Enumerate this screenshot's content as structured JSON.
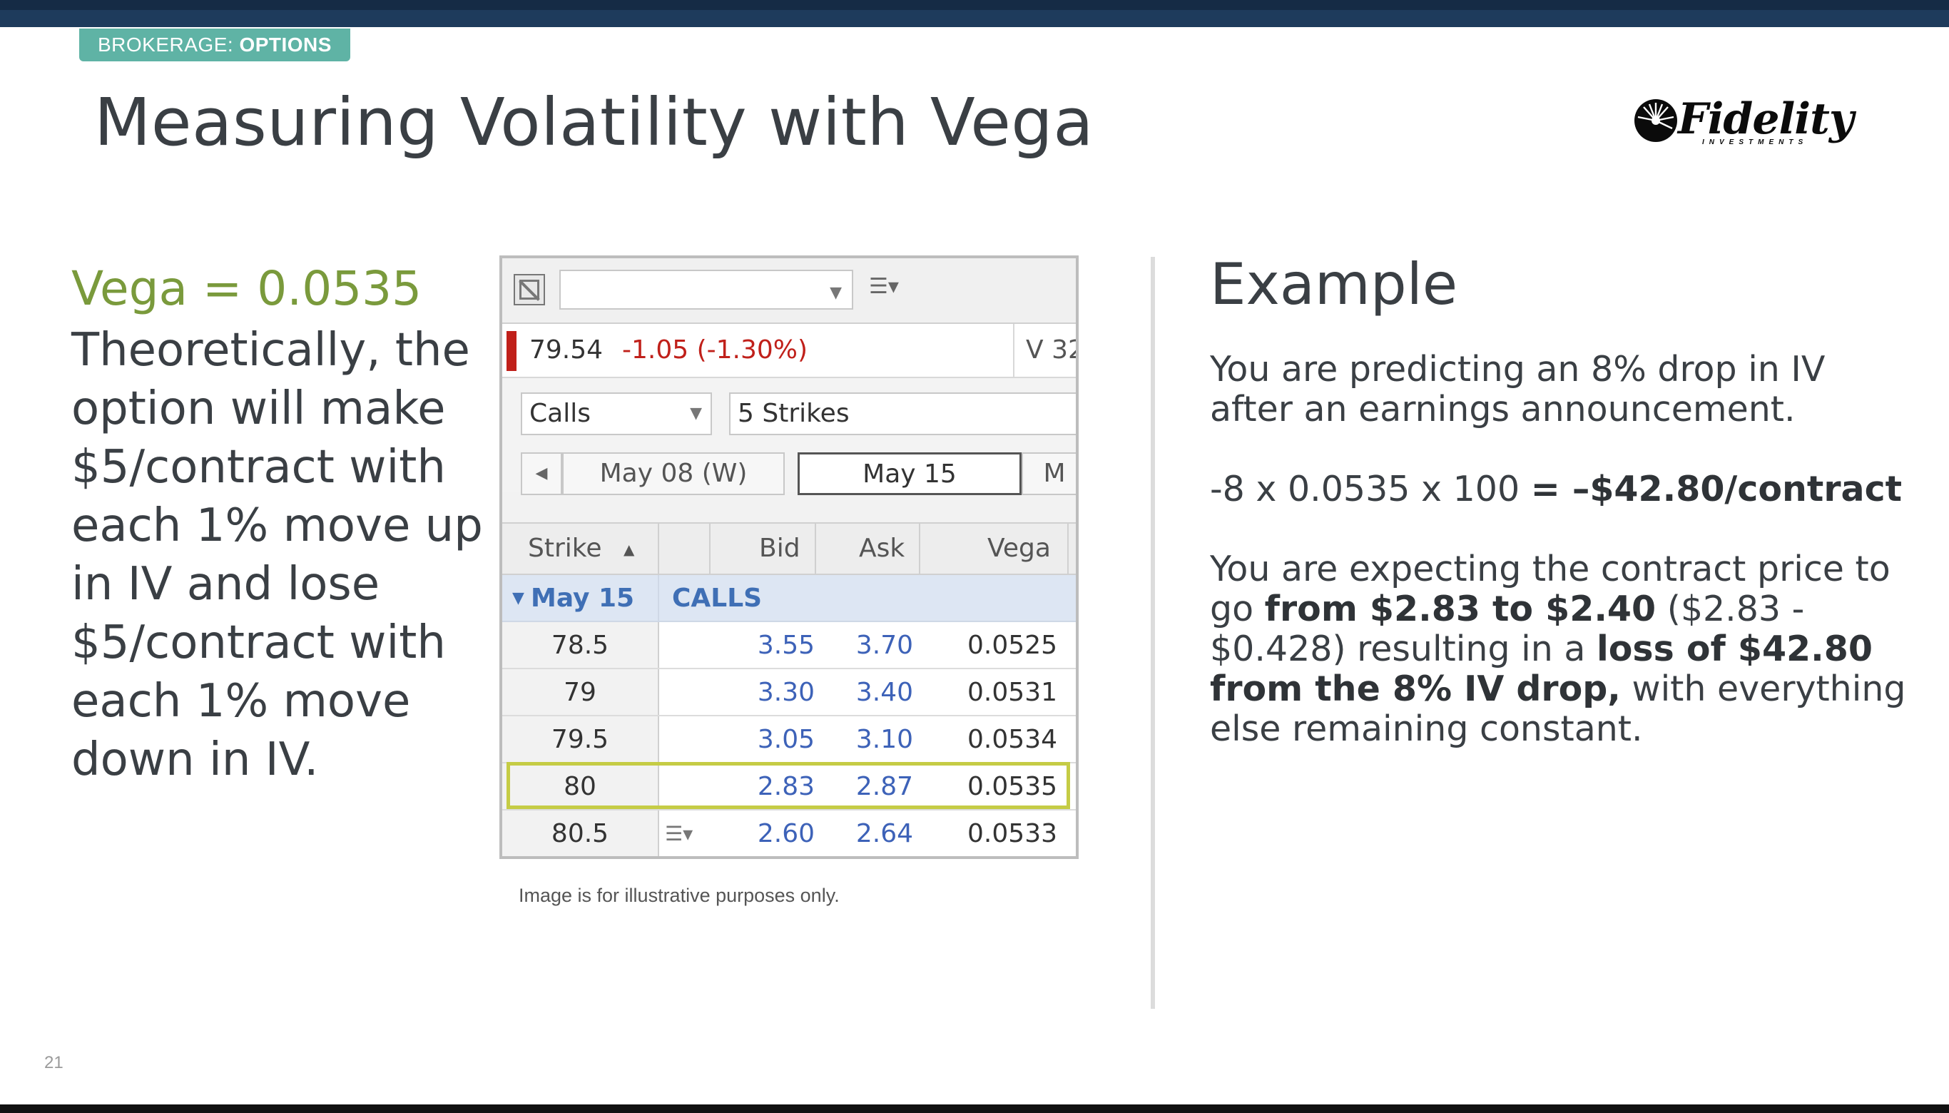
{
  "brand": {
    "tag_prefix": "BROKERAGE: ",
    "tag_emphasis": "OPTIONS",
    "logo": "Fidelity",
    "logo_sub": "INVESTMENTS"
  },
  "slide": {
    "title": "Measuring Volatility with Vega",
    "page_number": "21"
  },
  "left": {
    "heading": "Vega = 0.0535",
    "body": "Theoretically, the option will make $5/contract with each 1% move up in IV and lose $5/contract with each 1% move down in IV."
  },
  "widget": {
    "quote_last": "79.54",
    "quote_change": "-1.05 (-1.30%)",
    "quote_volume": "V 32",
    "type_select": "Calls",
    "strikes_select": "5 Strikes",
    "dates": [
      "May 08 (W)",
      "May 15",
      "M"
    ],
    "active_date": "May 15",
    "columns": {
      "strike": "Strike",
      "bid": "Bid",
      "ask": "Ask",
      "vega": "Vega"
    },
    "group": {
      "expiry": "May 15",
      "type": "CALLS"
    },
    "rows": [
      {
        "strike": "78.5",
        "bid": "3.55",
        "ask": "3.70",
        "vega": "0.0525"
      },
      {
        "strike": "79",
        "bid": "3.30",
        "ask": "3.40",
        "vega": "0.0531"
      },
      {
        "strike": "79.5",
        "bid": "3.05",
        "ask": "3.10",
        "vega": "0.0534"
      },
      {
        "strike": "80",
        "bid": "2.83",
        "ask": "2.87",
        "vega": "0.0535"
      },
      {
        "strike": "80.5",
        "bid": "2.60",
        "ask": "2.64",
        "vega": "0.0533"
      }
    ],
    "highlighted_strike": "80"
  },
  "caption": "Image is for illustrative purposes only.",
  "example": {
    "title": "Example",
    "p1": "You are predicting an 8% drop in IV after an earnings announcement.",
    "p2_calc": "-8 x 0.0535 x 100 ",
    "p2_result": "= –$42.80/contract",
    "p3_a": "You are expecting the contract price to go ",
    "p3_b": "from $2.83 to $2.40",
    "p3_c": " ($2.83 - $0.428) resulting in a ",
    "p3_d": "loss of $42.80 from the 8% IV drop,",
    "p3_e": " with everything else remaining constant."
  },
  "colors": {
    "accent_green": "#7a9a3c",
    "tag_teal": "#5fb3a5",
    "navy": "#1e3b5c",
    "highlight": "#c5cc45",
    "price_blue": "#3d62b8",
    "loss_red": "#c0201a"
  }
}
